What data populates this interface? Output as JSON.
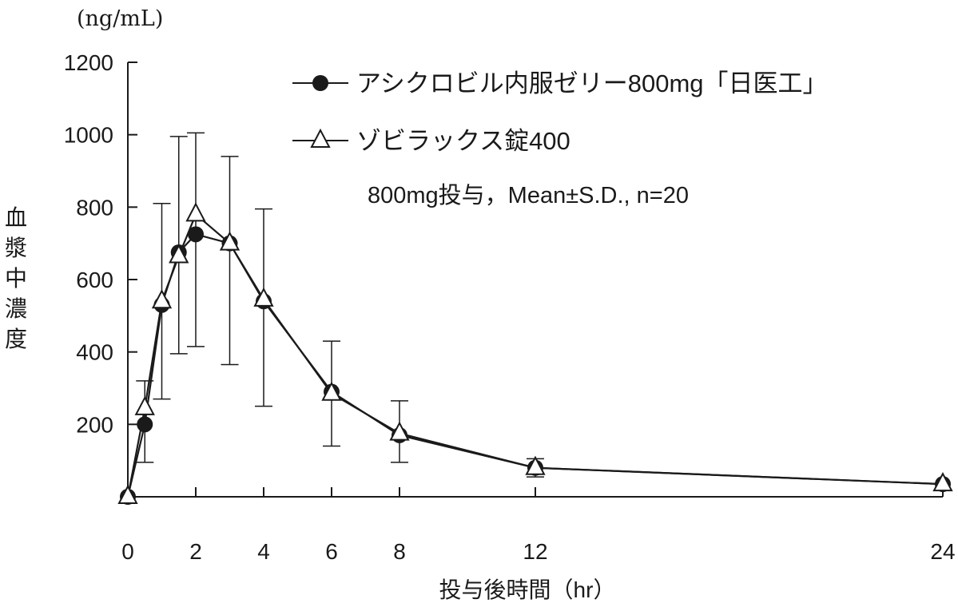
{
  "chart_data": {
    "type": "line",
    "ylabel": "血漿中濃度",
    "yunit": "(ng/mL)",
    "xlabel": "投与後時間（hr）",
    "note": "800mg投与，Mean±S.D., n=20",
    "xlim": [
      0,
      24
    ],
    "ylim": [
      0,
      1200
    ],
    "xticks": [
      0,
      2,
      4,
      6,
      8,
      12,
      24
    ],
    "yticks": [
      200,
      400,
      600,
      800,
      1000,
      1200
    ],
    "legend_position": "top-right",
    "series": [
      {
        "name": "アシクロビル内服ゼリー800mg「日医工」",
        "marker": "filled-circle",
        "color": "#1a1a1a",
        "x": [
          0,
          0.5,
          1,
          1.5,
          2,
          3,
          4,
          6,
          8,
          12,
          24
        ],
        "y": [
          0,
          200,
          530,
          675,
          725,
          700,
          540,
          290,
          170,
          80,
          35
        ]
      },
      {
        "name": "ゾビラックス錠400",
        "marker": "open-triangle",
        "color": "#1a1a1a",
        "x": [
          0,
          0.5,
          1,
          1.5,
          2,
          3,
          4,
          6,
          8,
          12,
          24
        ],
        "y": [
          0,
          245,
          540,
          665,
          780,
          700,
          545,
          285,
          175,
          80,
          35
        ],
        "sd_upper": [
          null,
          320,
          810,
          995,
          1005,
          940,
          795,
          430,
          265,
          105,
          null
        ],
        "sd_lower": [
          null,
          95,
          270,
          395,
          415,
          365,
          250,
          140,
          95,
          55,
          null
        ]
      }
    ]
  }
}
